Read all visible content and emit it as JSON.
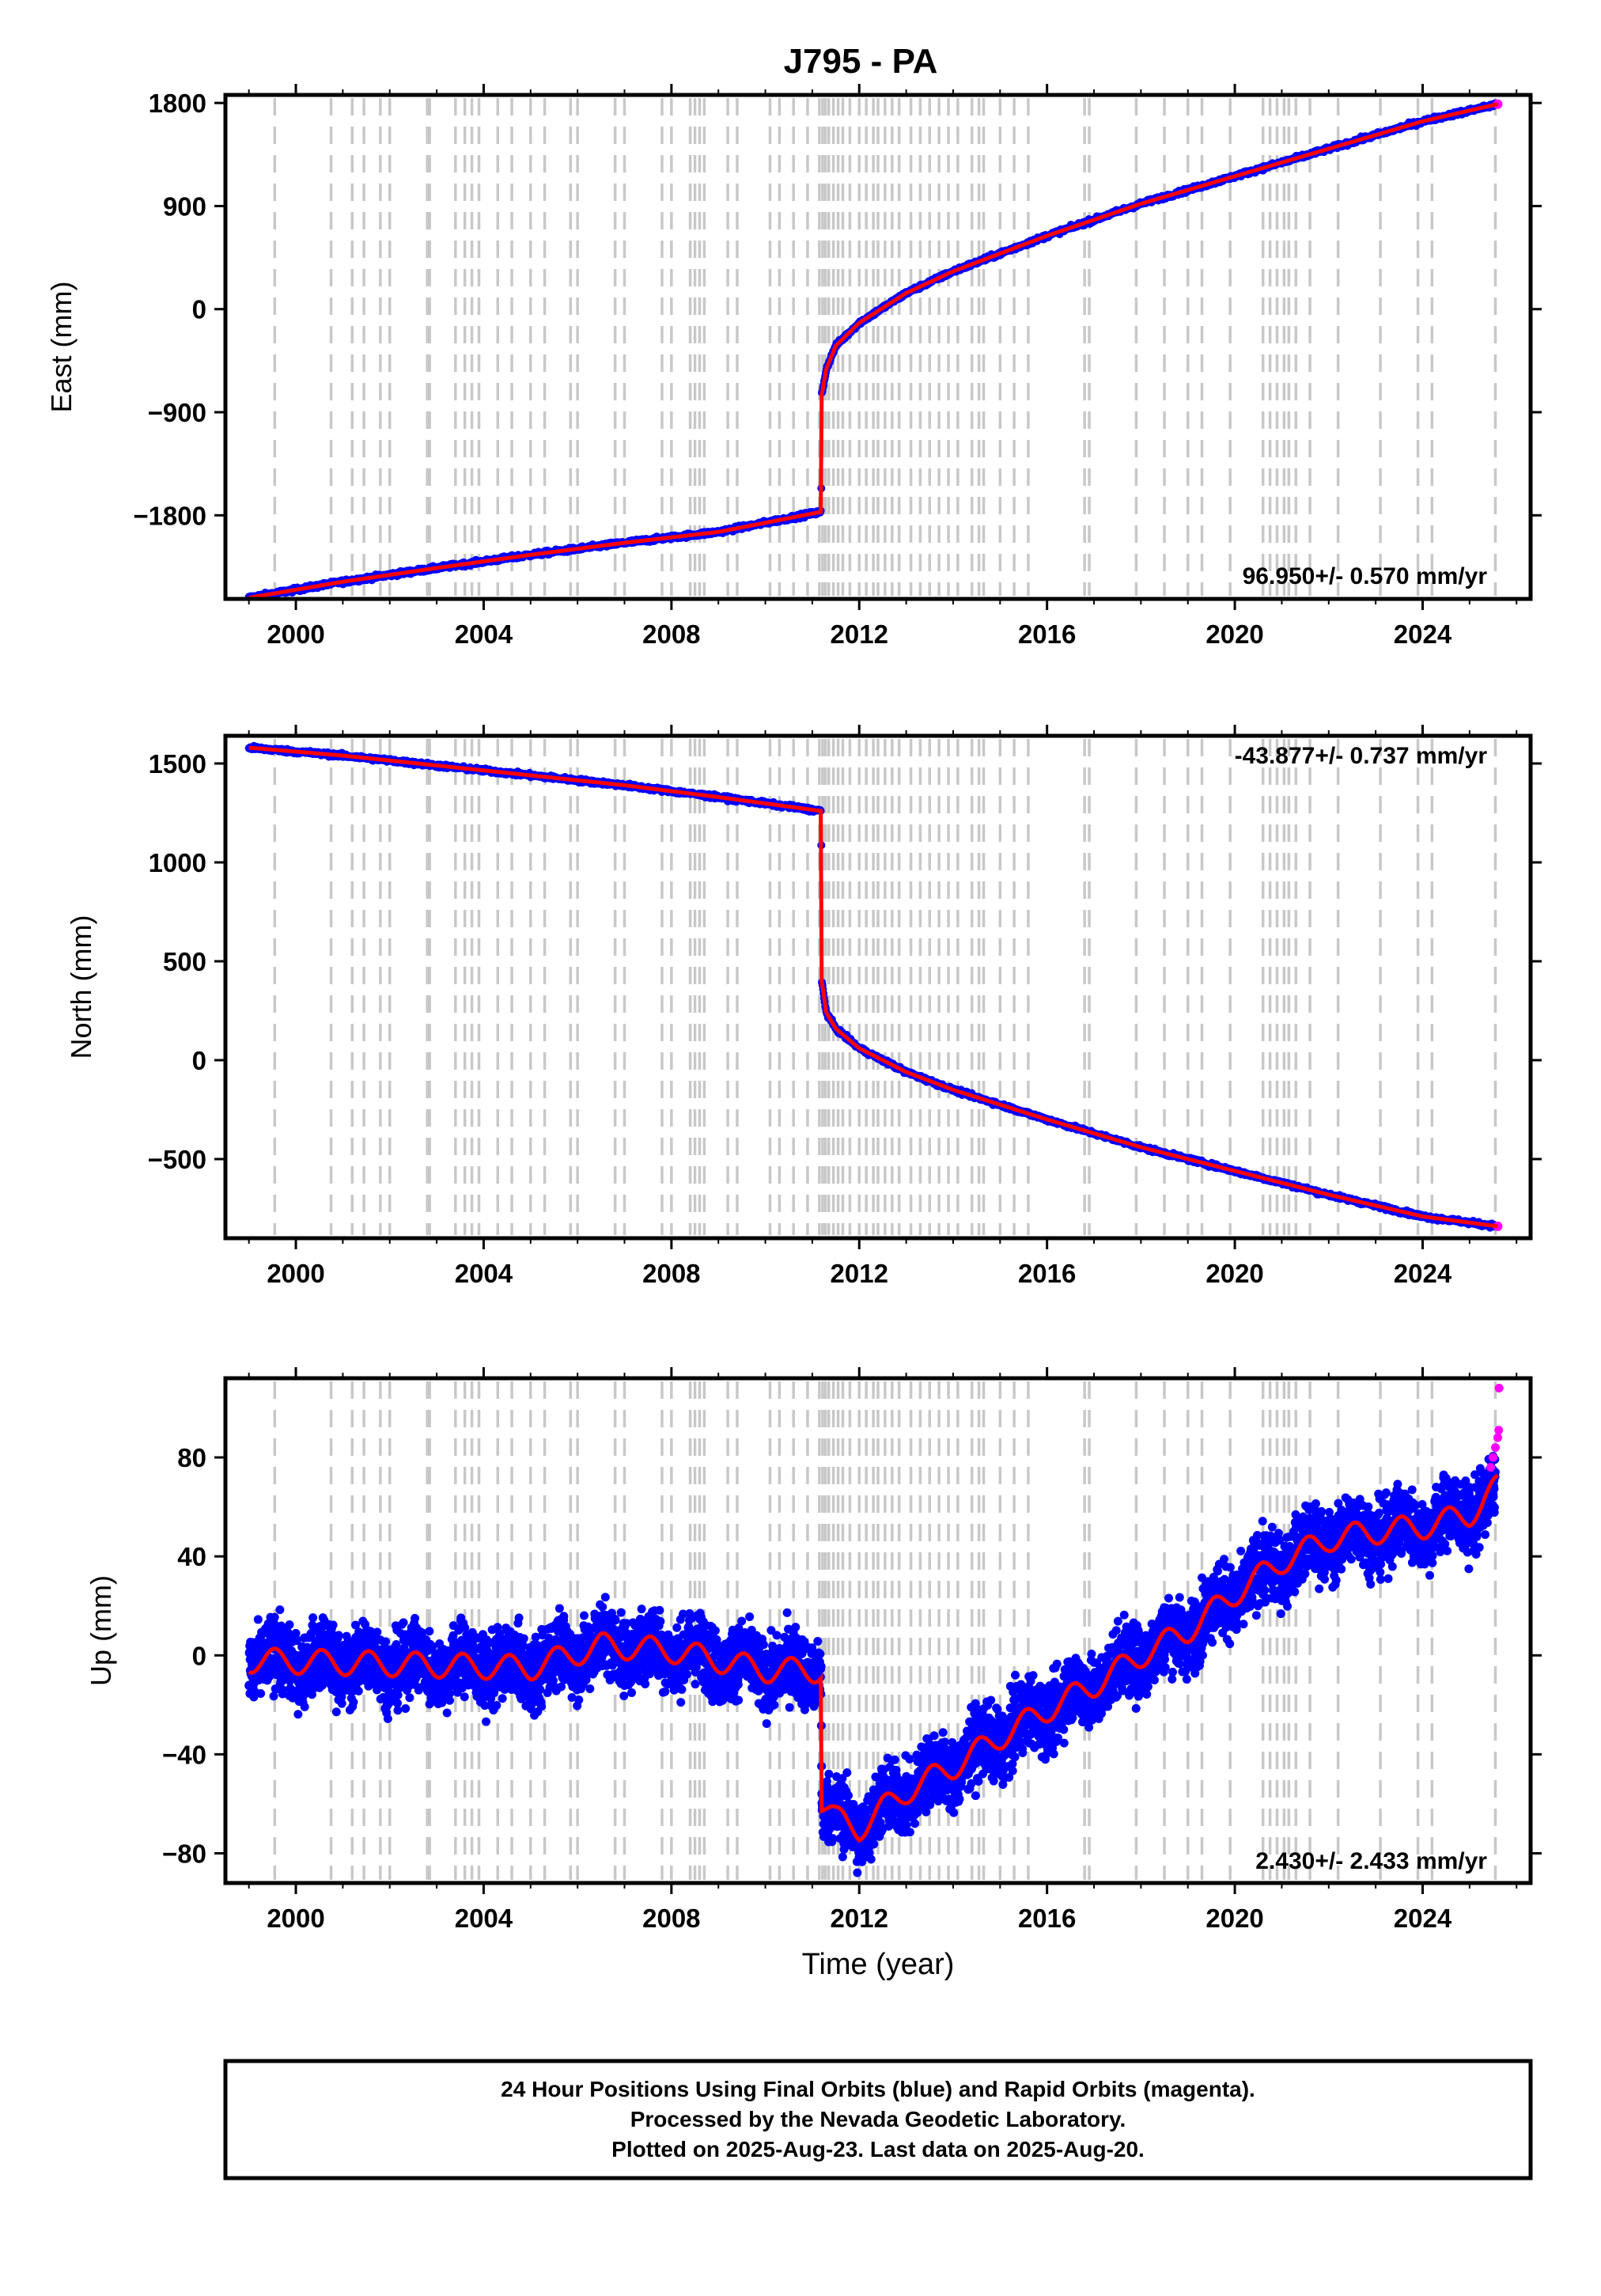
{
  "title": "J795 - PA",
  "xlabel": "Time (year)",
  "info_lines": [
    "24 Hour Positions Using Final Orbits (blue) and Rapid Orbits (magenta).",
    "Processed by the Nevada Geodetic Laboratory.",
    "Plotted on 2025-Aug-23. Last data on 2025-Aug-20."
  ],
  "colors": {
    "final_orbits": "#0000ff",
    "rapid_orbits": "#ff00ff",
    "model": "#ff0000",
    "event_lines": "#c8c8c8",
    "frame": "#000000"
  },
  "chart_data": [
    {
      "type": "scatter",
      "ylabel": "East (mm)",
      "rate_label": "96.950+/- 0.570 mm/yr",
      "xlim": [
        1998.5,
        2026.3
      ],
      "ylim": [
        -2530,
        1870
      ],
      "xticks": [
        2000,
        2004,
        2008,
        2012,
        2016,
        2020,
        2024
      ],
      "xtick_labels": [
        "2000",
        "2004",
        "2008",
        "2012",
        "2016",
        "2020",
        "2024"
      ],
      "yticks": [
        1800,
        900,
        0,
        -900,
        -1800
      ],
      "ytick_labels": [
        "1800",
        "900",
        "0",
        "−900",
        "−1800"
      ],
      "grid": false,
      "series": [
        {
          "x": [
            1999.0,
            2001.0,
            2003.0,
            2005.0,
            2007.0,
            2009.0,
            2011.19,
            2011.2,
            2011.3,
            2011.5,
            2012.0,
            2013.0,
            2014.0,
            2016.0,
            2018.0,
            2020.0,
            2022.0,
            2024.0,
            2025.6
          ],
          "y": [
            -2520,
            -2380,
            -2260,
            -2145,
            -2040,
            -1945,
            -1770,
            -750,
            -520,
            -320,
            -120,
            140,
            330,
            640,
            920,
            1160,
            1400,
            1640,
            1790
          ]
        }
      ]
    },
    {
      "type": "scatter",
      "ylabel": "North (mm)",
      "rate_label": "-43.877+/- 0.737 mm/yr",
      "xlim": [
        1998.5,
        2026.3
      ],
      "ylim": [
        -900,
        1640
      ],
      "xticks": [
        2000,
        2004,
        2008,
        2012,
        2016,
        2020,
        2024
      ],
      "xtick_labels": [
        "2000",
        "2004",
        "2008",
        "2012",
        "2016",
        "2020",
        "2024"
      ],
      "yticks": [
        1500,
        1000,
        500,
        0,
        -500
      ],
      "ytick_labels": [
        "1500",
        "1000",
        "500",
        "0",
        "−500"
      ],
      "grid": false,
      "series": [
        {
          "x": [
            1999.0,
            2001.0,
            2003.0,
            2005.0,
            2007.0,
            2009.0,
            2011.19,
            2011.2,
            2011.3,
            2011.5,
            2012.0,
            2013.0,
            2014.0,
            2016.0,
            2018.0,
            2020.0,
            2022.0,
            2024.0,
            2025.6
          ],
          "y": [
            1580,
            1540,
            1490,
            1440,
            1390,
            1330,
            1260,
            400,
            240,
            160,
            60,
            -60,
            -150,
            -300,
            -440,
            -560,
            -680,
            -790,
            -840
          ]
        }
      ]
    },
    {
      "type": "scatter",
      "ylabel": "Up (mm)",
      "rate_label": "2.430+/- 2.433 mm/yr",
      "xlim": [
        1998.5,
        2026.3
      ],
      "ylim": [
        -92,
        112
      ],
      "xticks": [
        2000,
        2004,
        2008,
        2012,
        2016,
        2020,
        2024
      ],
      "xtick_labels": [
        "2000",
        "2004",
        "2008",
        "2012",
        "2016",
        "2020",
        "2024"
      ],
      "yticks": [
        80,
        40,
        0,
        -40,
        -80
      ],
      "ytick_labels": [
        "80",
        "40",
        "0",
        "−40",
        "−80"
      ],
      "grid": false,
      "series": [
        {
          "x": [
            1999.0,
            2001.0,
            2003.0,
            2005.0,
            2006.5,
            2008.0,
            2010.0,
            2011.19,
            2011.2,
            2011.5,
            2012.0,
            2012.5,
            2013.0,
            2014.0,
            2015.0,
            2016.0,
            2017.0,
            2018.0,
            2019.0,
            2020.0,
            2021.0,
            2022.0,
            2023.0,
            2024.0,
            2025.0,
            2025.6
          ],
          "y": [
            -2,
            -3,
            -4,
            -5,
            4,
            2,
            -6,
            -6,
            -60,
            -66,
            -70,
            -62,
            -55,
            -45,
            -33,
            -22,
            -12,
            0,
            10,
            25,
            38,
            47,
            50,
            52,
            57,
            68
          ]
        },
        {
          "x": [
            2025.45,
            2025.5,
            2025.55,
            2025.6,
            2025.62,
            2025.63
          ],
          "y": [
            76,
            80,
            84,
            88,
            91,
            108
          ]
        }
      ]
    }
  ],
  "event_years": [
    1999.55,
    2000.75,
    2001.2,
    2001.45,
    2001.8,
    2002.0,
    2002.8,
    2002.85,
    2003.4,
    2003.6,
    2003.75,
    2003.9,
    2004.3,
    2004.6,
    2005.0,
    2005.3,
    2005.85,
    2006.0,
    2006.8,
    2007.0,
    2007.8,
    2008.0,
    2008.4,
    2008.5,
    2008.6,
    2008.7,
    2009.2,
    2009.4,
    2010.1,
    2010.3,
    2010.6,
    2010.9,
    2011.15,
    2011.22,
    2011.28,
    2011.35,
    2011.45,
    2011.55,
    2011.65,
    2011.8,
    2012.0,
    2012.15,
    2012.3,
    2012.4,
    2012.55,
    2012.7,
    2012.85,
    2013.1,
    2013.3,
    2013.5,
    2013.7,
    2013.9,
    2014.1,
    2014.4,
    2014.55,
    2014.65,
    2015.0,
    2015.3,
    2015.6,
    2016.8,
    2016.9,
    2017.9,
    2018.5,
    2019.0,
    2019.3,
    2019.9,
    2020.6,
    2020.75,
    2020.9,
    2021.05,
    2021.15,
    2021.3,
    2021.6,
    2022.2,
    2023.1,
    2023.9,
    2024.2,
    2025.55
  ]
}
